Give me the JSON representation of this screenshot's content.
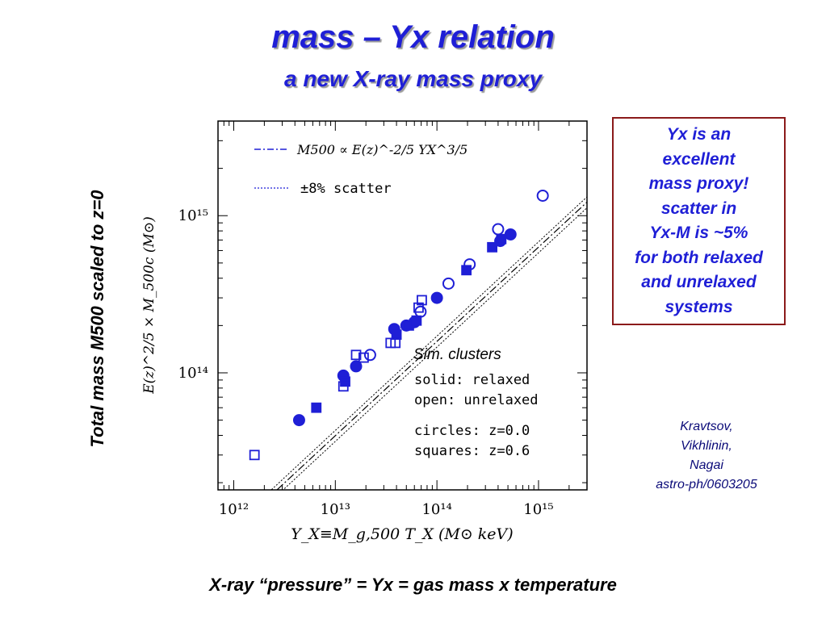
{
  "slide": {
    "title": "mass – Yx relation",
    "subtitle": "a new X-ray mass proxy",
    "side_ylabel": "Total mass M500 scaled to z=0",
    "box_lines": [
      "Yx is an",
      "excellent",
      "mass proxy!",
      "scatter in",
      "Yx-M is ~5%",
      "for both relaxed",
      "and unrelaxed",
      "systems"
    ],
    "credits": [
      "Kravtsov,",
      "Vikhlinin,",
      "Nagai",
      "astro-ph/0603205"
    ],
    "caption": "X-ray “pressure” = Yx = gas mass x temperature"
  },
  "colors": {
    "title": "#1f1fd6",
    "points": "#1f1fd6",
    "box_border": "#8b1a1a",
    "credits": "#0a0a78"
  },
  "chart_data": {
    "type": "scatter",
    "xscale": "log",
    "yscale": "log",
    "xlim": [
      700000000000,
      3000000000000000
    ],
    "ylim": [
      18000000000000,
      4000000000000000
    ],
    "xlabel": "Y_X≡M_g,500 T_X  (M⊙ keV)",
    "ylabel": "E(z)^2/5 × M_500c  (M⊙)",
    "x_ticklabels": [
      "10¹²",
      "10¹³",
      "10¹⁴",
      "10¹⁵"
    ],
    "y_ticklabels": [
      "10¹⁴",
      "10¹⁵"
    ],
    "legend": {
      "line_label": "M500 ∝ E(z)^-2/5 YX^3/5",
      "scatter_label": "±8% scatter"
    },
    "annotation": {
      "title": "Sim. clusters",
      "lines": [
        "solid: relaxed",
        "open: unrelaxed",
        "circles: z=0.0",
        "squares: z=0.6"
      ]
    },
    "fit_line": {
      "slope_log": 0.6,
      "intercept_log": 5.8,
      "scatter_fraction": 0.08
    },
    "series": [
      {
        "name": "solid: relaxed / circles: z=0.0",
        "marker": "circle",
        "filled": true,
        "x": [
          4400000000000.0,
          12000000000000.0,
          16000000000000.0,
          38000000000000.0,
          50000000000000.0,
          60000000000000.0,
          100000000000000.0,
          420000000000000.0,
          530000000000000.0
        ],
        "y": [
          50000000000000.0,
          96000000000000.0,
          110000000000000.0,
          190000000000000.0,
          200000000000000.0,
          210000000000000.0,
          300000000000000.0,
          690000000000000.0,
          760000000000000.0
        ]
      },
      {
        "name": "solid: relaxed / squares: z=0.6",
        "marker": "square",
        "filled": true,
        "x": [
          6500000000000.0,
          12500000000000.0,
          40000000000000.0,
          53000000000000.0,
          63000000000000.0,
          195000000000000.0,
          350000000000000.0,
          430000000000000.0
        ],
        "y": [
          60000000000000.0,
          88000000000000.0,
          175000000000000.0,
          200000000000000.0,
          215000000000000.0,
          450000000000000.0,
          630000000000000.0,
          710000000000000.0
        ]
      },
      {
        "name": "open: unrelaxed / circles: z=0.0",
        "marker": "circle",
        "filled": false,
        "x": [
          22000000000000.0,
          69000000000000.0,
          130000000000000.0,
          210000000000000.0,
          400000000000000.0,
          1100000000000000.0
        ],
        "y": [
          130000000000000.0,
          245000000000000.0,
          370000000000000.0,
          490000000000000.0,
          820000000000000.0,
          1340000000000000.0
        ]
      },
      {
        "name": "open: unrelaxed / squares: z=0.6",
        "marker": "square",
        "filled": false,
        "x": [
          1600000000000.0,
          12000000000000.0,
          16000000000000.0,
          19000000000000.0,
          35000000000000.0,
          39000000000000.0,
          66000000000000.0,
          71000000000000.0
        ],
        "y": [
          30000000000000.0,
          82000000000000.0,
          130000000000000.0,
          125000000000000.0,
          155000000000000.0,
          155000000000000.0,
          260000000000000.0,
          290000000000000.0
        ]
      }
    ]
  }
}
